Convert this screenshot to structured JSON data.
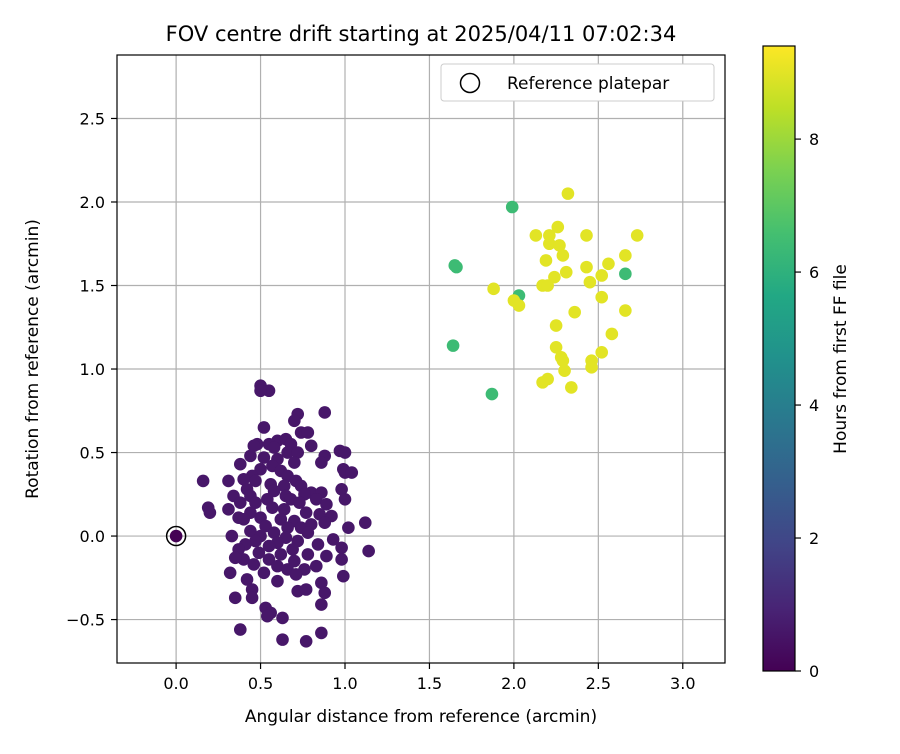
{
  "chart_data": {
    "type": "scatter",
    "title": "FOV centre drift starting at 2025/04/11 07:02:34",
    "xlabel": "Angular distance from reference (arcmin)",
    "ylabel": "Rotation from reference (arcmin)",
    "xlim": [
      -0.35,
      3.25
    ],
    "ylim": [
      -0.76,
      2.88
    ],
    "xticks": [
      0.0,
      0.5,
      1.0,
      1.5,
      2.0,
      2.5,
      3.0
    ],
    "xtick_labels": [
      "0.0",
      "0.5",
      "1.0",
      "1.5",
      "2.0",
      "2.5",
      "3.0"
    ],
    "yticks": [
      -0.5,
      0.0,
      0.5,
      1.0,
      1.5,
      2.0,
      2.5
    ],
    "ytick_labels": [
      "−0.5",
      "0.0",
      "0.5",
      "1.0",
      "1.5",
      "2.0",
      "2.5"
    ],
    "grid": true,
    "legend": {
      "position": "top-right",
      "entries": [
        "Reference platepar"
      ]
    },
    "reference_point": {
      "x": 0.0,
      "y": 0.0
    },
    "colorbar": {
      "label": "Hours from first FF file",
      "min": 0,
      "max": 9.4,
      "ticks": [
        0,
        2,
        4,
        6,
        8
      ],
      "tick_labels": [
        "0",
        "2",
        "4",
        "6",
        "8"
      ],
      "colormap": "viridis"
    },
    "points": [
      {
        "x": 0.5,
        "y": 0.9,
        "h": 0.6
      },
      {
        "x": 0.55,
        "y": 0.87,
        "h": 0.6
      },
      {
        "x": 0.5,
        "y": 0.87,
        "h": 0.6
      },
      {
        "x": 0.88,
        "y": 0.74,
        "h": 0.6
      },
      {
        "x": 0.72,
        "y": 0.73,
        "h": 0.6
      },
      {
        "x": 0.7,
        "y": 0.69,
        "h": 0.6
      },
      {
        "x": 0.52,
        "y": 0.65,
        "h": 0.6
      },
      {
        "x": 0.74,
        "y": 0.62,
        "h": 0.6
      },
      {
        "x": 0.78,
        "y": 0.62,
        "h": 0.6
      },
      {
        "x": 0.6,
        "y": 0.57,
        "h": 0.6
      },
      {
        "x": 0.65,
        "y": 0.58,
        "h": 0.6
      },
      {
        "x": 0.48,
        "y": 0.55,
        "h": 0.6
      },
      {
        "x": 0.46,
        "y": 0.54,
        "h": 0.6
      },
      {
        "x": 0.55,
        "y": 0.55,
        "h": 0.6
      },
      {
        "x": 0.68,
        "y": 0.55,
        "h": 0.6
      },
      {
        "x": 0.58,
        "y": 0.53,
        "h": 0.6
      },
      {
        "x": 0.8,
        "y": 0.54,
        "h": 0.6
      },
      {
        "x": 0.97,
        "y": 0.51,
        "h": 0.6
      },
      {
        "x": 1.0,
        "y": 0.5,
        "h": 0.6
      },
      {
        "x": 0.66,
        "y": 0.5,
        "h": 0.6
      },
      {
        "x": 0.72,
        "y": 0.5,
        "h": 0.6
      },
      {
        "x": 0.44,
        "y": 0.48,
        "h": 0.6
      },
      {
        "x": 0.52,
        "y": 0.47,
        "h": 0.6
      },
      {
        "x": 0.88,
        "y": 0.48,
        "h": 0.6
      },
      {
        "x": 0.6,
        "y": 0.46,
        "h": 0.6
      },
      {
        "x": 0.38,
        "y": 0.43,
        "h": 0.6
      },
      {
        "x": 0.7,
        "y": 0.44,
        "h": 0.6
      },
      {
        "x": 0.86,
        "y": 0.44,
        "h": 0.6
      },
      {
        "x": 0.57,
        "y": 0.42,
        "h": 0.6
      },
      {
        "x": 0.5,
        "y": 0.4,
        "h": 0.6
      },
      {
        "x": 0.62,
        "y": 0.39,
        "h": 0.6
      },
      {
        "x": 0.99,
        "y": 0.4,
        "h": 0.6
      },
      {
        "x": 1.0,
        "y": 0.38,
        "h": 0.6
      },
      {
        "x": 1.04,
        "y": 0.38,
        "h": 0.6
      },
      {
        "x": 0.45,
        "y": 0.36,
        "h": 0.6
      },
      {
        "x": 0.4,
        "y": 0.34,
        "h": 0.6
      },
      {
        "x": 0.66,
        "y": 0.36,
        "h": 0.6
      },
      {
        "x": 0.16,
        "y": 0.33,
        "h": 0.6
      },
      {
        "x": 0.31,
        "y": 0.33,
        "h": 0.6
      },
      {
        "x": 0.47,
        "y": 0.33,
        "h": 0.6
      },
      {
        "x": 0.71,
        "y": 0.33,
        "h": 0.6
      },
      {
        "x": 0.56,
        "y": 0.31,
        "h": 0.6
      },
      {
        "x": 0.64,
        "y": 0.3,
        "h": 0.6
      },
      {
        "x": 0.74,
        "y": 0.3,
        "h": 0.6
      },
      {
        "x": 0.98,
        "y": 0.28,
        "h": 0.6
      },
      {
        "x": 0.42,
        "y": 0.28,
        "h": 0.6
      },
      {
        "x": 0.58,
        "y": 0.27,
        "h": 0.6
      },
      {
        "x": 0.8,
        "y": 0.26,
        "h": 0.6
      },
      {
        "x": 0.86,
        "y": 0.26,
        "h": 0.6
      },
      {
        "x": 0.34,
        "y": 0.24,
        "h": 0.6
      },
      {
        "x": 0.44,
        "y": 0.24,
        "h": 0.6
      },
      {
        "x": 0.65,
        "y": 0.24,
        "h": 0.6
      },
      {
        "x": 0.76,
        "y": 0.25,
        "h": 0.6
      },
      {
        "x": 0.54,
        "y": 0.22,
        "h": 0.6
      },
      {
        "x": 0.68,
        "y": 0.22,
        "h": 0.6
      },
      {
        "x": 1.0,
        "y": 0.22,
        "h": 0.6
      },
      {
        "x": 0.83,
        "y": 0.22,
        "h": 0.6
      },
      {
        "x": 0.38,
        "y": 0.2,
        "h": 0.6
      },
      {
        "x": 0.47,
        "y": 0.2,
        "h": 0.6
      },
      {
        "x": 0.73,
        "y": 0.2,
        "h": 0.6
      },
      {
        "x": 0.89,
        "y": 0.19,
        "h": 0.6
      },
      {
        "x": 0.19,
        "y": 0.17,
        "h": 0.6
      },
      {
        "x": 0.57,
        "y": 0.17,
        "h": 0.6
      },
      {
        "x": 0.64,
        "y": 0.16,
        "h": 0.6
      },
      {
        "x": 0.31,
        "y": 0.16,
        "h": 0.6
      },
      {
        "x": 0.2,
        "y": 0.14,
        "h": 0.6
      },
      {
        "x": 0.44,
        "y": 0.14,
        "h": 0.6
      },
      {
        "x": 0.77,
        "y": 0.14,
        "h": 0.6
      },
      {
        "x": 0.85,
        "y": 0.13,
        "h": 0.6
      },
      {
        "x": 0.92,
        "y": 0.12,
        "h": 0.6
      },
      {
        "x": 0.37,
        "y": 0.11,
        "h": 0.6
      },
      {
        "x": 0.5,
        "y": 0.11,
        "h": 0.6
      },
      {
        "x": 0.62,
        "y": 0.1,
        "h": 0.6
      },
      {
        "x": 0.4,
        "y": 0.1,
        "h": 0.6
      },
      {
        "x": 0.7,
        "y": 0.09,
        "h": 0.6
      },
      {
        "x": 0.88,
        "y": 0.08,
        "h": 0.6
      },
      {
        "x": 1.12,
        "y": 0.08,
        "h": 0.6
      },
      {
        "x": 0.8,
        "y": 0.07,
        "h": 0.6
      },
      {
        "x": 0.53,
        "y": 0.06,
        "h": 0.6
      },
      {
        "x": 0.66,
        "y": 0.05,
        "h": 0.6
      },
      {
        "x": 0.74,
        "y": 0.05,
        "h": 0.6
      },
      {
        "x": 1.02,
        "y": 0.05,
        "h": 0.6
      },
      {
        "x": 0.44,
        "y": 0.03,
        "h": 0.6
      },
      {
        "x": 0.58,
        "y": 0.02,
        "h": 0.6
      },
      {
        "x": 0.78,
        "y": 0.02,
        "h": 0.6
      },
      {
        "x": 0.33,
        "y": 0.0,
        "h": 0.6
      },
      {
        "x": 0.5,
        "y": 0.0,
        "h": 0.6
      },
      {
        "x": 0.65,
        "y": -0.01,
        "h": 0.6
      },
      {
        "x": 0.93,
        "y": -0.02,
        "h": 0.6
      },
      {
        "x": 0.47,
        "y": -0.03,
        "h": 0.6
      },
      {
        "x": 0.6,
        "y": -0.04,
        "h": 0.6
      },
      {
        "x": 0.72,
        "y": -0.03,
        "h": 0.6
      },
      {
        "x": 0.41,
        "y": -0.05,
        "h": 0.6
      },
      {
        "x": 0.84,
        "y": -0.05,
        "h": 0.6
      },
      {
        "x": 0.55,
        "y": -0.06,
        "h": 0.6
      },
      {
        "x": 0.98,
        "y": -0.07,
        "h": 0.6
      },
      {
        "x": 0.37,
        "y": -0.08,
        "h": 0.6
      },
      {
        "x": 0.69,
        "y": -0.08,
        "h": 0.6
      },
      {
        "x": 1.14,
        "y": -0.09,
        "h": 0.6
      },
      {
        "x": 0.49,
        "y": -0.1,
        "h": 0.6
      },
      {
        "x": 0.62,
        "y": -0.11,
        "h": 0.6
      },
      {
        "x": 0.78,
        "y": -0.11,
        "h": 0.6
      },
      {
        "x": 0.89,
        "y": -0.12,
        "h": 0.6
      },
      {
        "x": 0.4,
        "y": -0.14,
        "h": 0.6
      },
      {
        "x": 0.35,
        "y": -0.13,
        "h": 0.6
      },
      {
        "x": 0.55,
        "y": -0.14,
        "h": 0.6
      },
      {
        "x": 0.7,
        "y": -0.15,
        "h": 0.6
      },
      {
        "x": 0.98,
        "y": -0.14,
        "h": 0.6
      },
      {
        "x": 0.46,
        "y": -0.17,
        "h": 0.6
      },
      {
        "x": 0.6,
        "y": -0.18,
        "h": 0.6
      },
      {
        "x": 0.83,
        "y": -0.18,
        "h": 0.6
      },
      {
        "x": 0.66,
        "y": -0.2,
        "h": 0.6
      },
      {
        "x": 0.76,
        "y": -0.2,
        "h": 0.6
      },
      {
        "x": 0.32,
        "y": -0.22,
        "h": 0.6
      },
      {
        "x": 0.52,
        "y": -0.22,
        "h": 0.6
      },
      {
        "x": 0.71,
        "y": -0.23,
        "h": 0.6
      },
      {
        "x": 0.99,
        "y": -0.24,
        "h": 0.6
      },
      {
        "x": 0.42,
        "y": -0.26,
        "h": 0.6
      },
      {
        "x": 0.6,
        "y": -0.27,
        "h": 0.6
      },
      {
        "x": 0.86,
        "y": -0.28,
        "h": 0.6
      },
      {
        "x": 0.45,
        "y": -0.32,
        "h": 0.6
      },
      {
        "x": 0.72,
        "y": -0.33,
        "h": 0.6
      },
      {
        "x": 0.77,
        "y": -0.32,
        "h": 0.6
      },
      {
        "x": 0.88,
        "y": -0.34,
        "h": 0.6
      },
      {
        "x": 0.35,
        "y": -0.37,
        "h": 0.6
      },
      {
        "x": 0.45,
        "y": -0.37,
        "h": 0.6
      },
      {
        "x": 0.86,
        "y": -0.41,
        "h": 0.6
      },
      {
        "x": 0.53,
        "y": -0.43,
        "h": 0.6
      },
      {
        "x": 0.56,
        "y": -0.46,
        "h": 0.6
      },
      {
        "x": 0.54,
        "y": -0.48,
        "h": 0.6
      },
      {
        "x": 0.63,
        "y": -0.49,
        "h": 0.6
      },
      {
        "x": 0.38,
        "y": -0.56,
        "h": 0.6
      },
      {
        "x": 0.86,
        "y": -0.58,
        "h": 0.6
      },
      {
        "x": 0.63,
        "y": -0.62,
        "h": 0.6
      },
      {
        "x": 0.77,
        "y": -0.63,
        "h": 0.6
      },
      {
        "x": 0.0,
        "y": 0.0,
        "h": 0.0
      },
      {
        "x": 1.99,
        "y": 1.97,
        "h": 6.4
      },
      {
        "x": 1.66,
        "y": 1.61,
        "h": 6.4
      },
      {
        "x": 1.65,
        "y": 1.62,
        "h": 6.4
      },
      {
        "x": 2.66,
        "y": 1.57,
        "h": 6.4
      },
      {
        "x": 2.03,
        "y": 1.44,
        "h": 6.4
      },
      {
        "x": 1.64,
        "y": 1.14,
        "h": 6.4
      },
      {
        "x": 1.87,
        "y": 0.85,
        "h": 6.4
      },
      {
        "x": 2.32,
        "y": 2.05,
        "h": 9.0
      },
      {
        "x": 2.26,
        "y": 1.85,
        "h": 9.0
      },
      {
        "x": 2.13,
        "y": 1.8,
        "h": 9.0
      },
      {
        "x": 2.21,
        "y": 1.8,
        "h": 9.0
      },
      {
        "x": 2.43,
        "y": 1.8,
        "h": 9.0
      },
      {
        "x": 2.73,
        "y": 1.8,
        "h": 9.0
      },
      {
        "x": 2.21,
        "y": 1.75,
        "h": 9.0
      },
      {
        "x": 2.27,
        "y": 1.74,
        "h": 9.0
      },
      {
        "x": 2.29,
        "y": 1.68,
        "h": 9.0
      },
      {
        "x": 2.66,
        "y": 1.68,
        "h": 9.0
      },
      {
        "x": 2.19,
        "y": 1.65,
        "h": 9.0
      },
      {
        "x": 2.56,
        "y": 1.63,
        "h": 9.0
      },
      {
        "x": 2.31,
        "y": 1.58,
        "h": 9.0
      },
      {
        "x": 2.43,
        "y": 1.61,
        "h": 9.0
      },
      {
        "x": 2.24,
        "y": 1.55,
        "h": 9.0
      },
      {
        "x": 2.52,
        "y": 1.56,
        "h": 9.0
      },
      {
        "x": 2.45,
        "y": 1.52,
        "h": 9.0
      },
      {
        "x": 2.17,
        "y": 1.5,
        "h": 9.0
      },
      {
        "x": 2.2,
        "y": 1.5,
        "h": 9.0
      },
      {
        "x": 1.88,
        "y": 1.48,
        "h": 9.0
      },
      {
        "x": 2.52,
        "y": 1.43,
        "h": 9.0
      },
      {
        "x": 2.0,
        "y": 1.41,
        "h": 9.0
      },
      {
        "x": 2.03,
        "y": 1.38,
        "h": 9.0
      },
      {
        "x": 2.66,
        "y": 1.35,
        "h": 9.0
      },
      {
        "x": 2.36,
        "y": 1.34,
        "h": 9.0
      },
      {
        "x": 2.25,
        "y": 1.26,
        "h": 9.0
      },
      {
        "x": 2.58,
        "y": 1.21,
        "h": 9.0
      },
      {
        "x": 2.25,
        "y": 1.13,
        "h": 9.0
      },
      {
        "x": 2.52,
        "y": 1.1,
        "h": 9.0
      },
      {
        "x": 2.28,
        "y": 1.07,
        "h": 9.0
      },
      {
        "x": 2.29,
        "y": 1.05,
        "h": 9.0
      },
      {
        "x": 2.46,
        "y": 1.05,
        "h": 9.0
      },
      {
        "x": 2.3,
        "y": 0.99,
        "h": 9.0
      },
      {
        "x": 2.46,
        "y": 1.01,
        "h": 9.0
      },
      {
        "x": 2.2,
        "y": 0.94,
        "h": 9.0
      },
      {
        "x": 2.17,
        "y": 0.92,
        "h": 9.0
      },
      {
        "x": 2.34,
        "y": 0.89,
        "h": 9.0
      }
    ]
  }
}
